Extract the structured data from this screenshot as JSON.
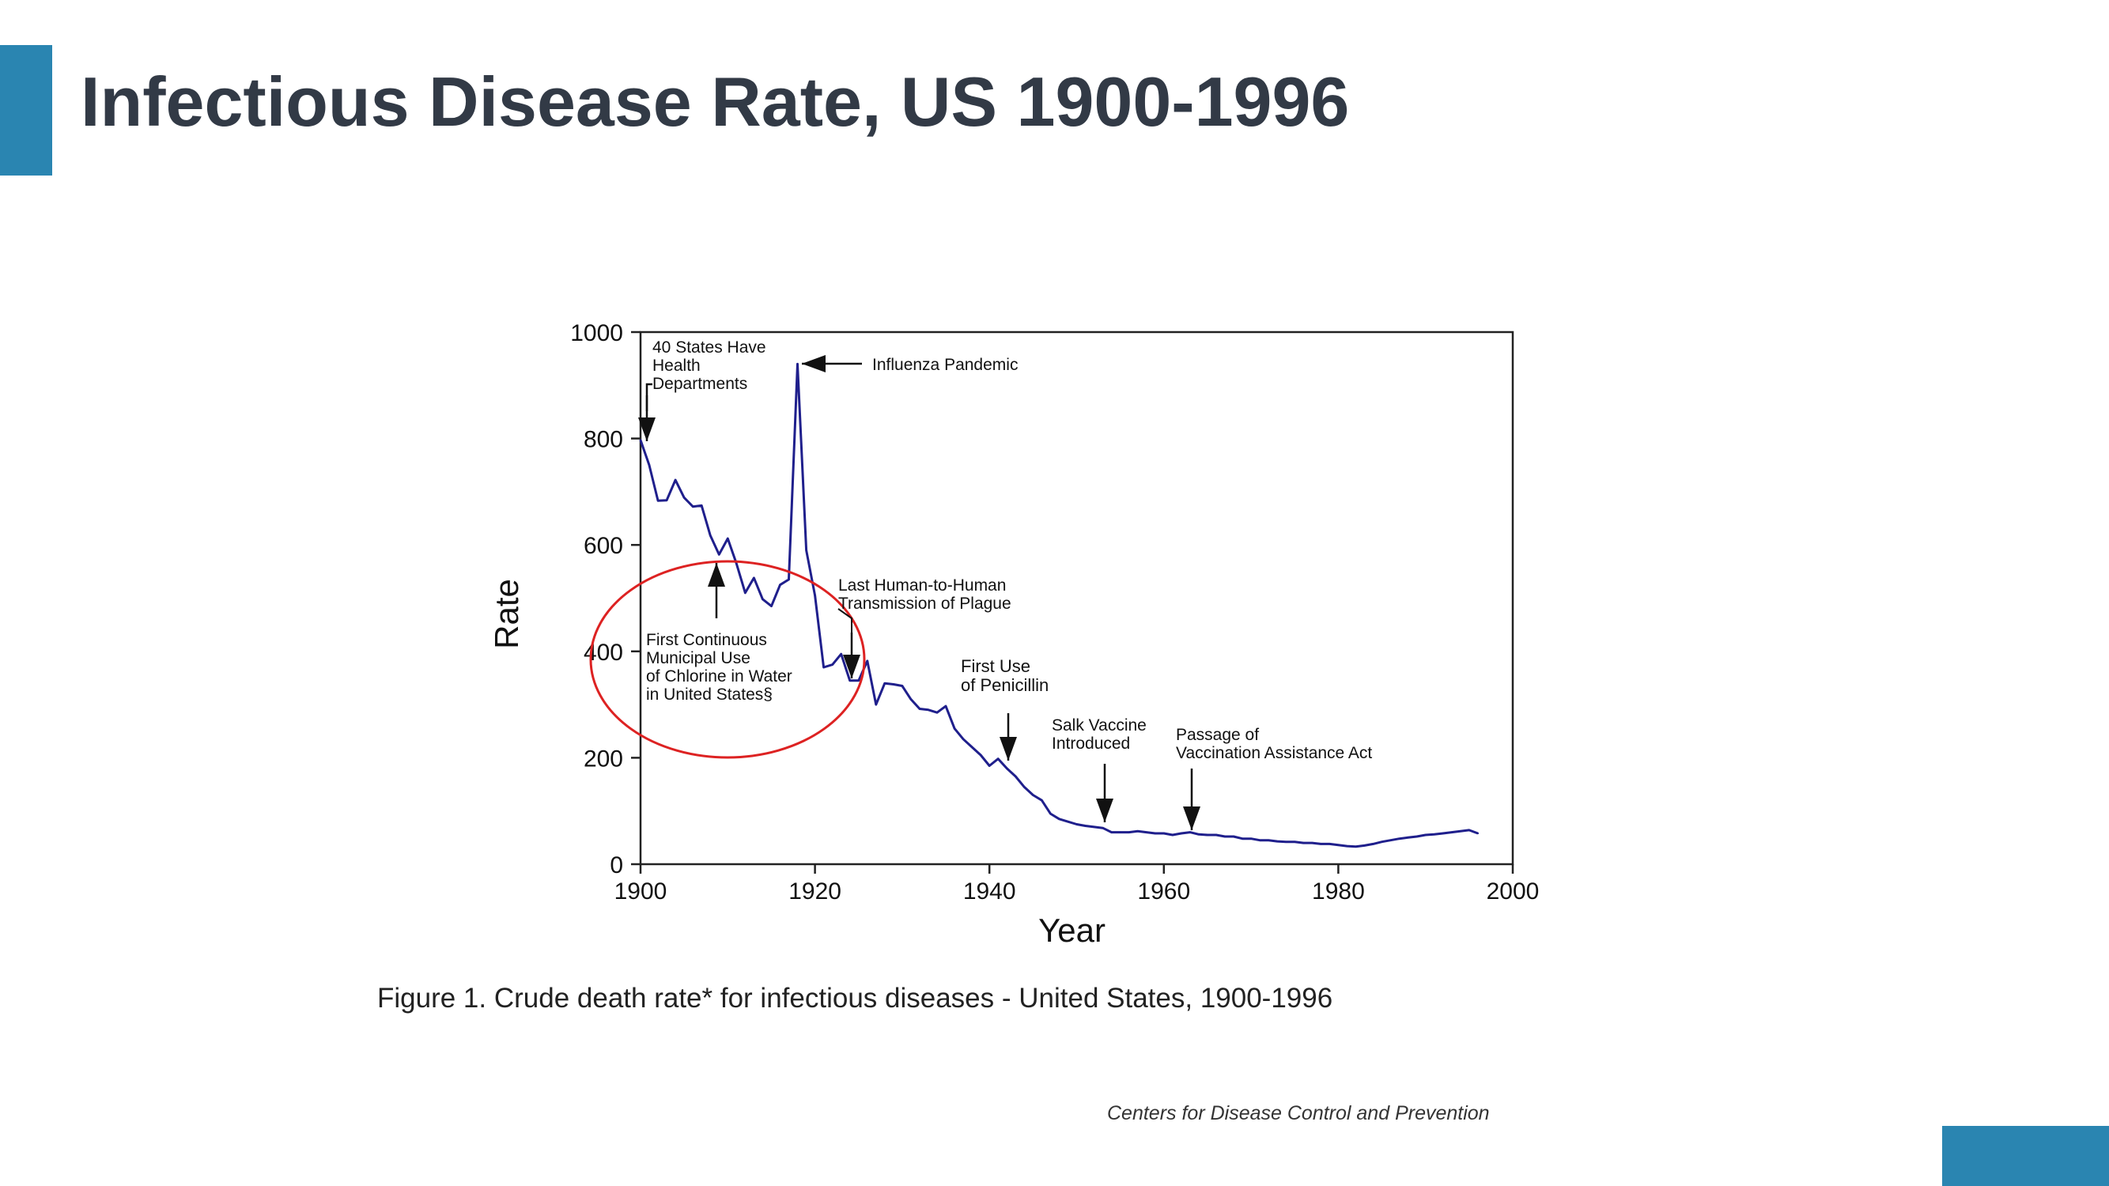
{
  "slide": {
    "title": "Infectious Disease Rate, US 1900-1996",
    "caption": "Figure 1. Crude death rate* for infectious diseases - United States, 1900-1996",
    "credit": "Centers for Disease Control and Prevention",
    "accent_color": "#2a85b1"
  },
  "chart_data": {
    "type": "line",
    "title": "",
    "xlabel": "Year",
    "ylabel": "Rate",
    "xlim": [
      1900,
      2000
    ],
    "ylim": [
      0,
      1000
    ],
    "xticks": [
      1900,
      1920,
      1940,
      1960,
      1980,
      2000
    ],
    "yticks": [
      0,
      200,
      400,
      600,
      800,
      1000
    ],
    "grid": false,
    "line_color": "#1f1f8c",
    "highlight_color": "#dd2222",
    "series": [
      {
        "x": [
          1900,
          1901,
          1902,
          1903,
          1904,
          1905,
          1906,
          1907,
          1908,
          1909,
          1910,
          1911,
          1912,
          1913,
          1914,
          1915,
          1916,
          1917,
          1918,
          1919,
          1920,
          1921,
          1922,
          1923,
          1924,
          1925,
          1926,
          1927,
          1928,
          1929,
          1930,
          1931,
          1932,
          1933,
          1934,
          1935,
          1936,
          1937,
          1938,
          1939,
          1940,
          1941,
          1942,
          1943,
          1944,
          1945,
          1946,
          1947,
          1948,
          1949,
          1950,
          1951,
          1952,
          1953,
          1954,
          1955,
          1956,
          1957,
          1958,
          1959,
          1960,
          1961,
          1962,
          1963,
          1964,
          1965,
          1966,
          1967,
          1968,
          1969,
          1970,
          1971,
          1972,
          1973,
          1974,
          1975,
          1976,
          1977,
          1978,
          1979,
          1980,
          1981,
          1982,
          1983,
          1984,
          1985,
          1986,
          1987,
          1988,
          1989,
          1990,
          1991,
          1992,
          1993,
          1994,
          1995,
          1996
        ],
        "y": [
          797,
          750,
          683,
          684,
          722,
          689,
          672,
          674,
          618,
          582,
          612,
          565,
          510,
          538,
          498,
          485,
          525,
          535,
          940,
          590,
          505,
          370,
          375,
          395,
          345,
          345,
          382,
          300,
          340,
          338,
          335,
          310,
          292,
          290,
          285,
          297,
          255,
          235,
          220,
          205,
          185,
          198,
          180,
          165,
          145,
          130,
          120,
          95,
          85,
          80,
          75,
          72,
          70,
          68,
          60,
          60,
          60,
          62,
          60,
          58,
          58,
          55,
          58,
          60,
          56,
          55,
          55,
          52,
          52,
          48,
          48,
          45,
          45,
          43,
          42,
          42,
          40,
          40,
          38,
          38,
          36,
          34,
          33,
          35,
          38,
          42,
          45,
          48,
          50,
          52,
          55,
          56,
          58,
          60,
          62,
          64,
          58
        ]
      }
    ],
    "annotations": [
      {
        "text": [
          "40 States Have",
          "Health",
          "Departments"
        ],
        "year": 1900
      },
      {
        "text": [
          "Influenza Pandemic"
        ],
        "year": 1918
      },
      {
        "text": [
          "Last Human-to-Human",
          "Transmission of Plague"
        ],
        "year": 1924
      },
      {
        "text": [
          "First Continuous",
          "Municipal Use",
          "of Chlorine in Water",
          "in United States§"
        ],
        "year": 1908
      },
      {
        "text": [
          "First Use",
          "of Penicillin"
        ],
        "year": 1942
      },
      {
        "text": [
          "Salk Vaccine",
          "Introduced"
        ],
        "year": 1953
      },
      {
        "text": [
          "Passage of",
          "Vaccination Assistance Act"
        ],
        "year": 1963
      }
    ]
  }
}
